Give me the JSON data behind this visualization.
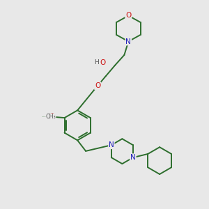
{
  "bg_color": "#e8e8e8",
  "bond_color": "#2d6e2d",
  "N_color": "#2020bb",
  "O_color": "#cc1111",
  "text_gray": "#555555",
  "lw": 1.4,
  "figsize": [
    3.0,
    3.0
  ],
  "dpi": 100,
  "xlim": [
    0,
    10
  ],
  "ylim": [
    0,
    10
  ]
}
